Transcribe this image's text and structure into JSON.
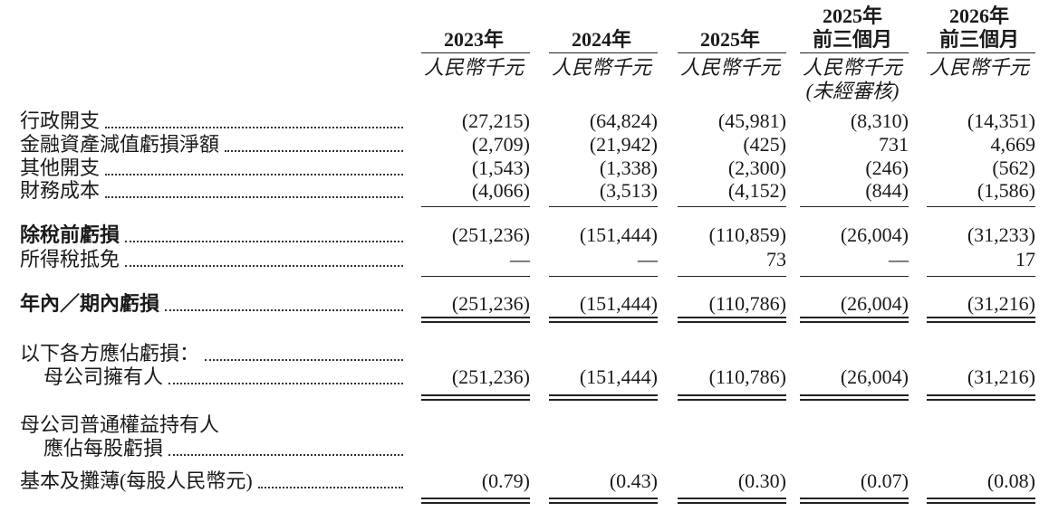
{
  "header": {
    "columns": [
      {
        "year": "2023年",
        "unit": "人民幣千元"
      },
      {
        "year": "2024年",
        "unit": "人民幣千元"
      },
      {
        "year": "2025年",
        "unit": "人民幣千元"
      },
      {
        "year": "2025年",
        "period": "前三個月",
        "unit": "人民幣千元",
        "note": "(未經審核)"
      },
      {
        "year": "2026年",
        "period": "前三個月",
        "unit": "人民幣千元"
      }
    ]
  },
  "rows": [
    {
      "label": "行政開支",
      "values": [
        "(27,215)",
        "(64,824)",
        "(45,981)",
        "(8,310)",
        "(14,351)"
      ]
    },
    {
      "label": "金融資產減值虧損淨額",
      "values": [
        "(2,709)",
        "(21,942)",
        "(425)",
        "731",
        "4,669"
      ]
    },
    {
      "label": "其他開支",
      "values": [
        "(1,543)",
        "(1,338)",
        "(2,300)",
        "(246)",
        "(562)"
      ]
    },
    {
      "label": "財務成本",
      "values": [
        "(4,066)",
        "(3,513)",
        "(4,152)",
        "(844)",
        "(1,586)"
      ]
    },
    {
      "label": "除稅前虧損",
      "values": [
        "(251,236)",
        "(151,444)",
        "(110,859)",
        "(26,004)",
        "(31,233)"
      ]
    },
    {
      "label": "所得稅抵免",
      "values": [
        "—",
        "—",
        "73",
        "—",
        "17"
      ]
    },
    {
      "label": "年內／期內虧損",
      "values": [
        "(251,236)",
        "(151,444)",
        "(110,786)",
        "(26,004)",
        "(31,216)"
      ]
    },
    {
      "label": "以下各方應佔虧損："
    },
    {
      "label": "母公司擁有人",
      "values": [
        "(251,236)",
        "(151,444)",
        "(110,786)",
        "(26,004)",
        "(31,216)"
      ]
    },
    {
      "label": "母公司普通權益持有人"
    },
    {
      "label": "應佔每股虧損"
    },
    {
      "label": "基本及攤薄(每股人民幣元)",
      "values": [
        "(0.79)",
        "(0.43)",
        "(0.30)",
        "(0.07)",
        "(0.08)"
      ]
    }
  ]
}
